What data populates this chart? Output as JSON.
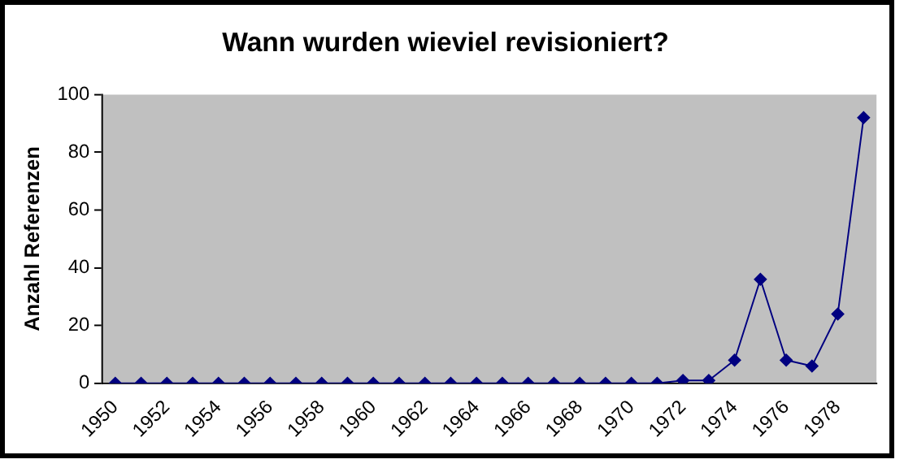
{
  "chart_data": {
    "type": "line",
    "title": "Wann wurden wieviel revisioniert?",
    "ylabel": "Anzahl Referenzen",
    "categories": [
      "1950",
      null,
      "1952",
      null,
      "1954",
      null,
      "1956",
      null,
      "1958",
      null,
      "1960",
      null,
      "1962",
      null,
      "1964",
      null,
      "1966",
      null,
      "1968",
      null,
      "1970",
      null,
      "1972",
      null,
      "1974",
      null,
      "1976",
      null,
      "1978",
      null
    ],
    "series": [
      {
        "color": "#000080",
        "values": [
          0,
          0,
          0,
          0,
          0,
          0,
          0,
          0,
          0,
          0,
          0,
          0,
          0,
          0,
          0,
          0,
          0,
          0,
          0,
          0,
          0,
          0,
          1,
          1,
          8,
          36,
          8,
          6,
          24,
          92
        ]
      }
    ],
    "ylim": [
      0,
      100
    ],
    "yticks": [
      0,
      20,
      40,
      60,
      80,
      100
    ],
    "grid": false,
    "legend": false,
    "marker": "diamond",
    "line_style": "solid"
  }
}
